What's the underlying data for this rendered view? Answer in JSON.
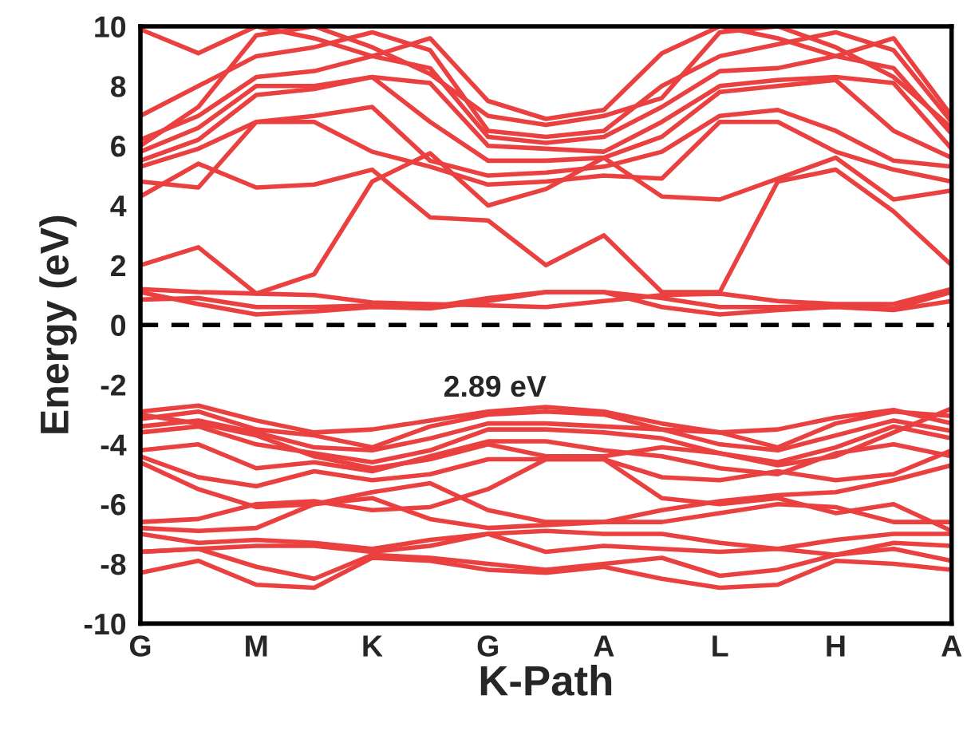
{
  "chart_data": {
    "type": "line",
    "xlabel": "K-Path",
    "ylabel": "Energy (eV)",
    "categories": [
      "G",
      null,
      "M",
      null,
      "K",
      null,
      "G",
      null,
      "A",
      null,
      "L",
      null,
      "H",
      null,
      "A"
    ],
    "ylim": [
      -10,
      10
    ],
    "yticks": [
      -10,
      -8,
      -6,
      -4,
      -2,
      0,
      2,
      4,
      6,
      8,
      10
    ],
    "grid": false,
    "marker": "none",
    "line_style": "solid",
    "ref_lines": [
      {
        "axis": "y",
        "value": 0,
        "color": "#000000",
        "line_style": "dashed"
      }
    ],
    "annotations": [
      "2.89 eV"
    ],
    "series": [
      {
        "color": "#ea4040",
        "values": [
          1.1,
          0.7,
          0.35,
          0.45,
          0.6,
          0.55,
          0.8,
          1.1,
          1.1,
          0.6,
          0.35,
          0.5,
          0.6,
          0.5,
          0.8
        ]
      },
      {
        "color": "#ea4040",
        "values": [
          0.85,
          0.9,
          0.6,
          0.6,
          0.65,
          0.6,
          0.9,
          1.1,
          1.1,
          0.9,
          0.6,
          0.6,
          0.65,
          0.55,
          1.1
        ]
      },
      {
        "color": "#ea4040",
        "values": [
          1.2,
          1.1,
          1.05,
          1.0,
          0.75,
          0.7,
          0.65,
          0.6,
          0.8,
          1.0,
          1.05,
          0.8,
          0.7,
          0.7,
          1.2
        ]
      },
      {
        "color": "#ea4040",
        "values": [
          2.0,
          2.6,
          1.05,
          1.7,
          4.8,
          5.75,
          4.0,
          4.55,
          5.6,
          4.3,
          4.2,
          4.9,
          5.6,
          4.2,
          4.5
        ]
      },
      {
        "color": "#ea4040",
        "values": [
          4.3,
          5.4,
          4.6,
          4.7,
          5.2,
          3.6,
          3.5,
          2.0,
          3.0,
          1.1,
          1.1,
          4.8,
          5.2,
          3.8,
          2.0
        ]
      },
      {
        "color": "#ea4040",
        "values": [
          4.8,
          4.6,
          6.8,
          6.8,
          5.8,
          5.3,
          4.7,
          4.8,
          5.0,
          4.9,
          6.8,
          6.8,
          5.8,
          5.2,
          4.8
        ]
      },
      {
        "color": "#ea4040",
        "values": [
          5.3,
          5.9,
          6.8,
          7.0,
          7.3,
          5.5,
          5.0,
          5.1,
          5.3,
          5.8,
          7.0,
          7.2,
          6.5,
          5.5,
          5.3
        ]
      },
      {
        "color": "#ea4040",
        "values": [
          5.5,
          6.2,
          7.7,
          7.9,
          8.3,
          6.8,
          5.5,
          5.5,
          5.6,
          6.3,
          7.8,
          8.0,
          8.2,
          6.5,
          5.6
        ]
      },
      {
        "color": "#ea4040",
        "values": [
          5.8,
          6.6,
          8.0,
          8.0,
          8.3,
          8.1,
          6.0,
          5.9,
          5.8,
          6.8,
          8.0,
          8.2,
          8.3,
          8.1,
          5.9
        ]
      },
      {
        "color": "#ea4040",
        "values": [
          6.2,
          7.0,
          8.3,
          8.5,
          9.0,
          8.6,
          6.3,
          6.1,
          6.3,
          7.3,
          8.5,
          8.6,
          9.0,
          8.6,
          6.4
        ]
      },
      {
        "color": "#ea4040",
        "values": [
          7.0,
          8.0,
          9.0,
          9.3,
          9.8,
          9.2,
          6.5,
          6.3,
          6.5,
          8.0,
          9.0,
          9.4,
          9.8,
          9.2,
          6.8
        ]
      },
      {
        "color": "#ea4040",
        "values": [
          6.0,
          7.3,
          9.7,
          10.0,
          9.3,
          8.4,
          7.0,
          6.7,
          7.0,
          7.6,
          9.8,
          10.0,
          9.3,
          8.3,
          6.6
        ]
      },
      {
        "color": "#ea4040",
        "values": [
          9.9,
          9.1,
          10.0,
          9.6,
          9.0,
          9.6,
          7.5,
          6.9,
          7.2,
          9.1,
          10.0,
          9.6,
          9.0,
          9.6,
          7.0
        ]
      },
      {
        "color": "#ea4040",
        "values": [
          -2.9,
          -2.7,
          -3.2,
          -3.6,
          -3.5,
          -3.2,
          -2.9,
          -2.75,
          -2.9,
          -3.3,
          -3.6,
          -3.5,
          -3.1,
          -2.85,
          -3.3
        ]
      },
      {
        "color": "#ea4040",
        "values": [
          -3.15,
          -2.9,
          -3.5,
          -3.7,
          -4.1,
          -3.4,
          -3.0,
          -2.9,
          -3.0,
          -3.5,
          -3.6,
          -4.1,
          -3.3,
          -2.9,
          -3.05
        ]
      },
      {
        "color": "#ea4040",
        "values": [
          -3.4,
          -3.2,
          -3.6,
          -4.1,
          -4.2,
          -3.8,
          -3.3,
          -3.3,
          -3.4,
          -3.5,
          -4.0,
          -4.2,
          -3.7,
          -3.2,
          -3.55
        ]
      },
      {
        "color": "#ea4040",
        "values": [
          -3.6,
          -3.4,
          -4.0,
          -4.3,
          -4.6,
          -4.2,
          -3.5,
          -3.5,
          -3.6,
          -3.8,
          -4.3,
          -4.6,
          -4.1,
          -3.4,
          -3.8
        ]
      },
      {
        "color": "#ea4040",
        "values": [
          -3.0,
          -3.3,
          -3.7,
          -4.4,
          -4.8,
          -4.5,
          -4.0,
          -4.4,
          -4.4,
          -4.1,
          -4.3,
          -4.7,
          -4.4,
          -3.6,
          -2.8
        ]
      },
      {
        "color": "#ea4040",
        "values": [
          -4.2,
          -4.0,
          -4.8,
          -4.6,
          -4.9,
          -4.4,
          -3.9,
          -3.9,
          -4.2,
          -4.4,
          -4.8,
          -5.0,
          -4.3,
          -4.0,
          -4.4
        ]
      },
      {
        "color": "#ea4040",
        "values": [
          -4.4,
          -5.1,
          -5.4,
          -4.9,
          -5.2,
          -5.0,
          -4.5,
          -4.5,
          -4.5,
          -5.1,
          -5.2,
          -4.9,
          -5.2,
          -5.0,
          -4.2
        ]
      },
      {
        "color": "#ea4040",
        "values": [
          -4.6,
          -5.5,
          -6.1,
          -6.0,
          -5.6,
          -5.3,
          -6.2,
          -6.6,
          -6.6,
          -6.2,
          -5.9,
          -5.7,
          -5.6,
          -5.2,
          -4.7
        ]
      },
      {
        "color": "#ea4040",
        "values": [
          -6.6,
          -6.5,
          -6.0,
          -5.9,
          -6.2,
          -6.1,
          -5.5,
          -4.5,
          -4.5,
          -5.8,
          -6.0,
          -5.8,
          -6.3,
          -6.0,
          -6.9
        ]
      },
      {
        "color": "#ea4040",
        "values": [
          -6.8,
          -6.9,
          -6.8,
          -6.0,
          -5.8,
          -6.5,
          -6.8,
          -6.7,
          -6.6,
          -6.6,
          -6.3,
          -6.0,
          -6.1,
          -6.6,
          -6.6
        ]
      },
      {
        "color": "#ea4040",
        "values": [
          -7.0,
          -7.3,
          -7.2,
          -7.3,
          -7.5,
          -7.2,
          -7.0,
          -6.9,
          -7.0,
          -7.0,
          -7.3,
          -7.5,
          -7.2,
          -7.0,
          -7.0
        ]
      },
      {
        "color": "#ea4040",
        "values": [
          -7.6,
          -7.5,
          -7.4,
          -7.4,
          -7.6,
          -7.4,
          -7.0,
          -7.6,
          -7.4,
          -7.5,
          -7.6,
          -7.5,
          -7.7,
          -7.3,
          -7.4
        ]
      },
      {
        "color": "#ea4040",
        "values": [
          -7.6,
          -7.5,
          -8.1,
          -8.5,
          -7.7,
          -7.8,
          -8.0,
          -8.2,
          -8.0,
          -7.8,
          -8.4,
          -8.2,
          -7.7,
          -7.5,
          -7.9
        ]
      },
      {
        "color": "#ea4040",
        "values": [
          -8.3,
          -7.9,
          -8.7,
          -8.8,
          -7.8,
          -7.9,
          -8.2,
          -8.3,
          -8.1,
          -8.5,
          -8.8,
          -8.7,
          -7.9,
          -8.0,
          -8.2
        ]
      }
    ]
  }
}
